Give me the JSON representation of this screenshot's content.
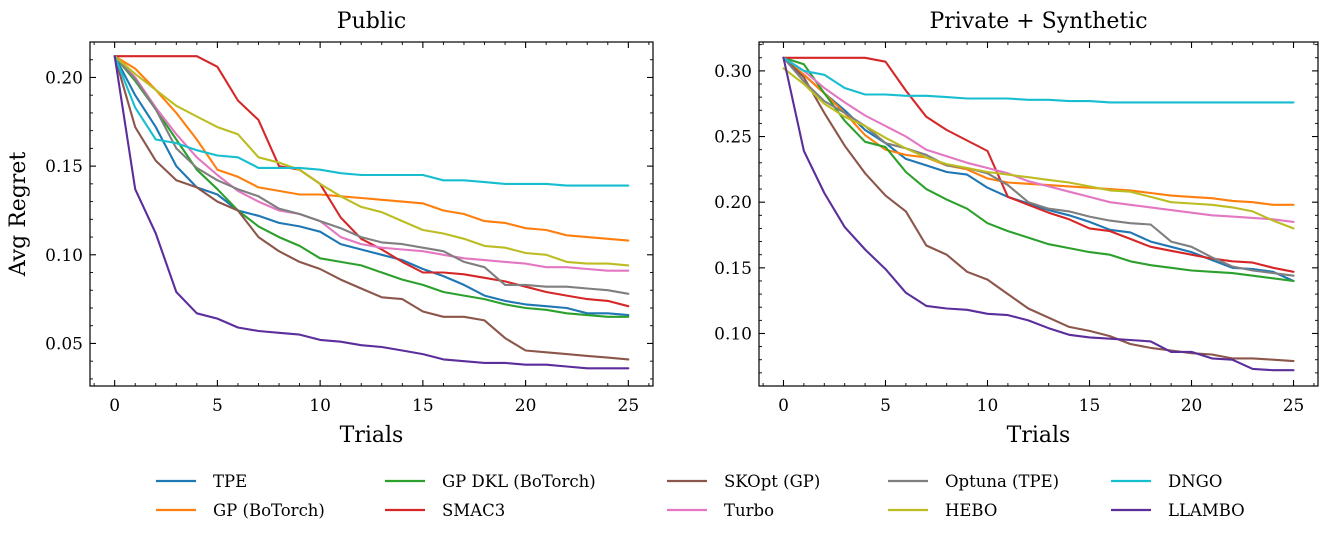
{
  "chart_data": [
    {
      "type": "line",
      "title": "Public",
      "xlabel": "Trials",
      "ylabel": "Avg Regret",
      "xlim": [
        -1.2,
        26.2
      ],
      "ylim": [
        0.026,
        0.22
      ],
      "xticks": [
        0,
        5,
        10,
        15,
        20,
        25
      ],
      "xtick_labels": [
        "0",
        "5",
        "10",
        "15",
        "20",
        "25"
      ],
      "yticks": [
        0.05,
        0.1,
        0.15,
        0.2
      ],
      "ytick_labels": [
        "0.05",
        "0.10",
        "0.15",
        "0.20"
      ],
      "x": [
        0,
        1,
        2,
        3,
        4,
        5,
        6,
        7,
        8,
        9,
        10,
        11,
        12,
        13,
        14,
        15,
        16,
        17,
        18,
        19,
        20,
        21,
        22,
        23,
        24,
        25
      ],
      "series": [
        {
          "name": "TPE",
          "color": "#1f77b4",
          "values": [
            0.212,
            0.19,
            0.172,
            0.15,
            0.138,
            0.134,
            0.125,
            0.122,
            0.118,
            0.116,
            0.113,
            0.106,
            0.103,
            0.1,
            0.097,
            0.092,
            0.088,
            0.083,
            0.077,
            0.074,
            0.072,
            0.071,
            0.07,
            0.067,
            0.067,
            0.066
          ]
        },
        {
          "name": "GP (BoTorch)",
          "color": "#ff7f0e",
          "values": [
            0.212,
            0.205,
            0.193,
            0.18,
            0.165,
            0.148,
            0.144,
            0.138,
            0.136,
            0.134,
            0.134,
            0.133,
            0.132,
            0.131,
            0.13,
            0.129,
            0.125,
            0.123,
            0.119,
            0.118,
            0.115,
            0.114,
            0.111,
            0.11,
            0.109,
            0.108
          ]
        },
        {
          "name": "GP DKL (BoTorch)",
          "color": "#2ca02c",
          "values": [
            0.212,
            0.198,
            0.182,
            0.165,
            0.148,
            0.137,
            0.125,
            0.116,
            0.11,
            0.105,
            0.098,
            0.096,
            0.094,
            0.09,
            0.086,
            0.083,
            0.079,
            0.077,
            0.075,
            0.072,
            0.07,
            0.069,
            0.067,
            0.066,
            0.065,
            0.065
          ]
        },
        {
          "name": "SMAC3",
          "color": "#d62728",
          "values": [
            0.212,
            0.212,
            0.212,
            0.212,
            0.212,
            0.206,
            0.187,
            0.176,
            0.15,
            0.148,
            0.14,
            0.121,
            0.109,
            0.103,
            0.096,
            0.09,
            0.09,
            0.089,
            0.087,
            0.085,
            0.082,
            0.079,
            0.077,
            0.075,
            0.074,
            0.071
          ]
        },
        {
          "name": "SKOpt (GP)",
          "color": "#8c564b",
          "values": [
            0.212,
            0.172,
            0.153,
            0.142,
            0.138,
            0.13,
            0.125,
            0.11,
            0.102,
            0.096,
            0.092,
            0.086,
            0.081,
            0.076,
            0.075,
            0.068,
            0.065,
            0.065,
            0.063,
            0.053,
            0.046,
            0.045,
            0.044,
            0.043,
            0.042,
            0.041
          ]
        },
        {
          "name": "Turbo",
          "color": "#e377c2",
          "values": [
            0.212,
            0.2,
            0.183,
            0.168,
            0.155,
            0.145,
            0.136,
            0.13,
            0.125,
            0.123,
            0.119,
            0.11,
            0.106,
            0.104,
            0.103,
            0.102,
            0.1,
            0.098,
            0.097,
            0.096,
            0.095,
            0.093,
            0.093,
            0.092,
            0.091,
            0.091
          ]
        },
        {
          "name": "Optuna (TPE)",
          "color": "#7f7f7f",
          "values": [
            0.212,
            0.199,
            0.182,
            0.16,
            0.149,
            0.142,
            0.137,
            0.133,
            0.126,
            0.123,
            0.119,
            0.115,
            0.11,
            0.107,
            0.106,
            0.104,
            0.102,
            0.096,
            0.093,
            0.083,
            0.083,
            0.082,
            0.082,
            0.081,
            0.08,
            0.078
          ]
        },
        {
          "name": "HEBO",
          "color": "#bcbd22",
          "values": [
            0.212,
            0.202,
            0.193,
            0.184,
            0.178,
            0.172,
            0.168,
            0.155,
            0.152,
            0.148,
            0.14,
            0.133,
            0.127,
            0.124,
            0.119,
            0.114,
            0.112,
            0.109,
            0.105,
            0.104,
            0.101,
            0.1,
            0.096,
            0.095,
            0.095,
            0.094
          ]
        },
        {
          "name": "DNGO",
          "color": "#17becf",
          "values": [
            0.212,
            0.183,
            0.165,
            0.163,
            0.159,
            0.156,
            0.155,
            0.149,
            0.149,
            0.149,
            0.148,
            0.146,
            0.145,
            0.145,
            0.145,
            0.145,
            0.142,
            0.142,
            0.141,
            0.14,
            0.14,
            0.14,
            0.139,
            0.139,
            0.139,
            0.139
          ]
        },
        {
          "name": "LLAMBO",
          "color": "#5b2e9c",
          "values": [
            0.212,
            0.137,
            0.112,
            0.079,
            0.067,
            0.064,
            0.059,
            0.057,
            0.056,
            0.055,
            0.052,
            0.051,
            0.049,
            0.048,
            0.046,
            0.044,
            0.041,
            0.04,
            0.039,
            0.039,
            0.038,
            0.038,
            0.037,
            0.036,
            0.036,
            0.036
          ]
        }
      ]
    },
    {
      "type": "line",
      "title": "Private + Synthetic",
      "xlabel": "Trials",
      "ylabel": "",
      "xlim": [
        -1.2,
        26.2
      ],
      "ylim": [
        0.06,
        0.322
      ],
      "xticks": [
        0,
        5,
        10,
        15,
        20,
        25
      ],
      "xtick_labels": [
        "0",
        "5",
        "10",
        "15",
        "20",
        "25"
      ],
      "yticks": [
        0.1,
        0.15,
        0.2,
        0.25,
        0.3
      ],
      "ytick_labels": [
        "0.10",
        "0.15",
        "0.20",
        "0.25",
        "0.30"
      ],
      "x": [
        0,
        1,
        2,
        3,
        4,
        5,
        6,
        7,
        8,
        9,
        10,
        11,
        12,
        13,
        14,
        15,
        16,
        17,
        18,
        19,
        20,
        21,
        22,
        23,
        24,
        25
      ],
      "series": [
        {
          "name": "TPE",
          "color": "#1f77b4",
          "values": [
            0.31,
            0.297,
            0.283,
            0.27,
            0.255,
            0.245,
            0.233,
            0.228,
            0.223,
            0.221,
            0.211,
            0.204,
            0.199,
            0.194,
            0.19,
            0.185,
            0.179,
            0.177,
            0.17,
            0.166,
            0.162,
            0.156,
            0.15,
            0.149,
            0.147,
            0.14
          ]
        },
        {
          "name": "GP (BoTorch)",
          "color": "#ff7f0e",
          "values": [
            0.31,
            0.297,
            0.283,
            0.268,
            0.251,
            0.24,
            0.236,
            0.234,
            0.228,
            0.225,
            0.218,
            0.215,
            0.214,
            0.213,
            0.212,
            0.211,
            0.21,
            0.209,
            0.207,
            0.205,
            0.204,
            0.203,
            0.201,
            0.2,
            0.198,
            0.198
          ]
        },
        {
          "name": "GP DKL (BoTorch)",
          "color": "#2ca02c",
          "values": [
            0.31,
            0.305,
            0.283,
            0.262,
            0.246,
            0.242,
            0.223,
            0.21,
            0.202,
            0.195,
            0.184,
            0.178,
            0.173,
            0.168,
            0.165,
            0.162,
            0.16,
            0.155,
            0.152,
            0.15,
            0.148,
            0.147,
            0.146,
            0.144,
            0.142,
            0.14
          ]
        },
        {
          "name": "SMAC3",
          "color": "#d62728",
          "values": [
            0.31,
            0.31,
            0.31,
            0.31,
            0.31,
            0.307,
            0.285,
            0.265,
            0.255,
            0.247,
            0.239,
            0.204,
            0.198,
            0.192,
            0.187,
            0.18,
            0.178,
            0.172,
            0.166,
            0.163,
            0.16,
            0.157,
            0.155,
            0.154,
            0.15,
            0.147
          ]
        },
        {
          "name": "SKOpt (GP)",
          "color": "#8c564b",
          "values": [
            0.31,
            0.295,
            0.268,
            0.243,
            0.222,
            0.205,
            0.193,
            0.167,
            0.16,
            0.147,
            0.141,
            0.13,
            0.119,
            0.112,
            0.105,
            0.102,
            0.098,
            0.092,
            0.089,
            0.087,
            0.085,
            0.084,
            0.081,
            0.081,
            0.08,
            0.079
          ]
        },
        {
          "name": "Turbo",
          "color": "#e377c2",
          "values": [
            0.31,
            0.3,
            0.287,
            0.276,
            0.266,
            0.258,
            0.25,
            0.24,
            0.235,
            0.23,
            0.226,
            0.222,
            0.216,
            0.212,
            0.208,
            0.204,
            0.2,
            0.198,
            0.196,
            0.194,
            0.192,
            0.19,
            0.189,
            0.188,
            0.187,
            0.185
          ]
        },
        {
          "name": "Optuna (TPE)",
          "color": "#7f7f7f",
          "values": [
            0.31,
            0.292,
            0.277,
            0.268,
            0.258,
            0.245,
            0.241,
            0.236,
            0.228,
            0.226,
            0.222,
            0.213,
            0.2,
            0.195,
            0.193,
            0.189,
            0.186,
            0.184,
            0.183,
            0.17,
            0.166,
            0.158,
            0.151,
            0.148,
            0.146,
            0.144
          ]
        },
        {
          "name": "HEBO",
          "color": "#bcbd22",
          "values": [
            0.302,
            0.29,
            0.275,
            0.265,
            0.258,
            0.249,
            0.241,
            0.234,
            0.229,
            0.226,
            0.223,
            0.221,
            0.219,
            0.217,
            0.215,
            0.212,
            0.209,
            0.208,
            0.204,
            0.2,
            0.199,
            0.198,
            0.196,
            0.193,
            0.186,
            0.18
          ]
        },
        {
          "name": "DNGO",
          "color": "#17becf",
          "values": [
            0.31,
            0.3,
            0.297,
            0.287,
            0.282,
            0.282,
            0.281,
            0.281,
            0.28,
            0.279,
            0.279,
            0.279,
            0.278,
            0.278,
            0.277,
            0.277,
            0.276,
            0.276,
            0.276,
            0.276,
            0.276,
            0.276,
            0.276,
            0.276,
            0.276,
            0.276
          ]
        },
        {
          "name": "LLAMBO",
          "color": "#5b2e9c",
          "values": [
            0.31,
            0.239,
            0.207,
            0.181,
            0.164,
            0.149,
            0.131,
            0.121,
            0.119,
            0.118,
            0.115,
            0.114,
            0.11,
            0.104,
            0.099,
            0.097,
            0.096,
            0.095,
            0.094,
            0.086,
            0.086,
            0.081,
            0.08,
            0.073,
            0.072,
            0.072
          ]
        }
      ]
    }
  ],
  "legend": {
    "placement": "bottom-center",
    "entries": [
      {
        "label": "TPE",
        "color": "#1f77b4"
      },
      {
        "label": "GP (BoTorch)",
        "color": "#ff7f0e"
      },
      {
        "label": "GP DKL (BoTorch)",
        "color": "#2ca02c"
      },
      {
        "label": "SMAC3",
        "color": "#d62728"
      },
      {
        "label": "SKOpt (GP)",
        "color": "#8c564b"
      },
      {
        "label": "Turbo",
        "color": "#e377c2"
      },
      {
        "label": "Optuna (TPE)",
        "color": "#7f7f7f"
      },
      {
        "label": "HEBO",
        "color": "#bcbd22"
      },
      {
        "label": "DNGO",
        "color": "#17becf"
      },
      {
        "label": "LLAMBO",
        "color": "#5b2e9c"
      }
    ]
  }
}
